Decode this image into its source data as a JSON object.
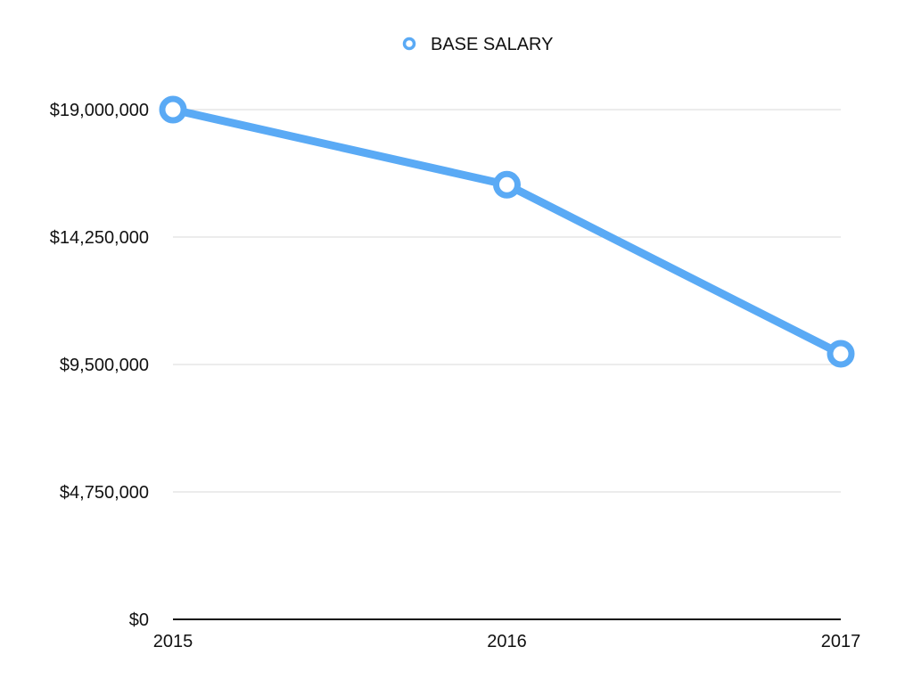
{
  "chart_data": {
    "type": "line",
    "title": "",
    "xlabel": "",
    "ylabel": "",
    "categories": [
      "2015",
      "2016",
      "2017"
    ],
    "series": [
      {
        "name": "BASE SALARY",
        "values": [
          19000000,
          16200000,
          9900000
        ],
        "color": "#5AAAF5"
      }
    ],
    "ylim": [
      0,
      19000000
    ],
    "y_ticks": [
      0,
      4750000,
      9500000,
      14250000,
      19000000
    ],
    "y_tick_labels": [
      "$0",
      "$4,750,000",
      "$9,500,000",
      "$14,250,000",
      "$19,000,000"
    ],
    "grid": true,
    "legend": {
      "position": "top-center",
      "entries": [
        "BASE SALARY"
      ]
    }
  }
}
